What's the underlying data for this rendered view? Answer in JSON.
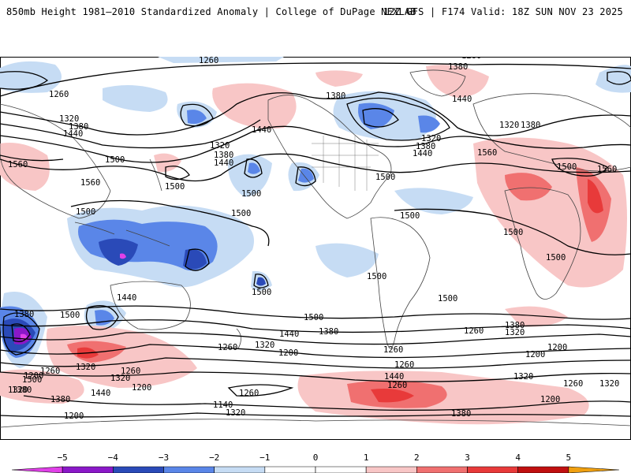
{
  "header": {
    "title": "850mb Height 1981–2010 Standardized Anomaly | College of DuPage NEXLAB",
    "run_info": "12Z GFS | F174 Valid: 18Z SUN NOV 23 2025"
  },
  "colors": {
    "anom_neg5": "#e040e8",
    "anom_neg4": "#8a18c8",
    "anom_neg3": "#2a4ab8",
    "anom_neg2": "#5a86e8",
    "anom_neg1": "#c6dcf4",
    "anom_pos1": "#f8c6c6",
    "anom_pos2": "#f07070",
    "anom_pos3": "#e83a3a",
    "anom_pos4": "#c01010",
    "anom_pos5": "#f0a010",
    "contour": "#000000",
    "coastline": "#444444"
  },
  "colorbar": {
    "ticks": [
      "−5",
      "−4",
      "−3",
      "−2",
      "−1",
      "0",
      "1",
      "2",
      "3",
      "4",
      "5"
    ],
    "segment_colors": [
      "#e040e8",
      "#8a18c8",
      "#2a4ab8",
      "#5a86e8",
      "#c6dcf4",
      "#ffffff",
      "#ffffff",
      "#f8c6c6",
      "#f07070",
      "#e83a3a",
      "#c01010",
      "#f0a010"
    ]
  },
  "map": {
    "contour_labels": [
      {
        "id": "l1",
        "text": "1260"
      },
      {
        "id": "l2",
        "text": "1260"
      },
      {
        "id": "l3",
        "text": "1380"
      },
      {
        "id": "l4",
        "text": "1260"
      },
      {
        "id": "l5",
        "text": "1380"
      },
      {
        "id": "l6",
        "text": "1440"
      },
      {
        "id": "l7",
        "text": "1320"
      },
      {
        "id": "l8",
        "text": "1380"
      },
      {
        "id": "l9",
        "text": "1440"
      },
      {
        "id": "l10",
        "text": "1320"
      },
      {
        "id": "l11",
        "text": "1380"
      },
      {
        "id": "l12",
        "text": "1440"
      },
      {
        "id": "l13",
        "text": "1440"
      },
      {
        "id": "l14",
        "text": "1320"
      },
      {
        "id": "l15",
        "text": "1380"
      },
      {
        "id": "l16",
        "text": "1440"
      },
      {
        "id": "l17",
        "text": "1320"
      },
      {
        "id": "l18",
        "text": "1380"
      },
      {
        "id": "l19",
        "text": "1560"
      },
      {
        "id": "l20",
        "text": "1500"
      },
      {
        "id": "l21",
        "text": "1560"
      },
      {
        "id": "l22",
        "text": "1500"
      },
      {
        "id": "l23",
        "text": "1500"
      },
      {
        "id": "l24",
        "text": "1560"
      },
      {
        "id": "l25",
        "text": "1500"
      },
      {
        "id": "l26",
        "text": "1560"
      },
      {
        "id": "l27",
        "text": "1500"
      },
      {
        "id": "l28",
        "text": "1500"
      },
      {
        "id": "l29",
        "text": "1500"
      },
      {
        "id": "l30",
        "text": "1500"
      },
      {
        "id": "l31",
        "text": "1500"
      },
      {
        "id": "l32",
        "text": "1440"
      },
      {
        "id": "l33",
        "text": "1500"
      },
      {
        "id": "l34",
        "text": "1500"
      },
      {
        "id": "l35",
        "text": "1500"
      },
      {
        "id": "l36",
        "text": "1500"
      },
      {
        "id": "l37",
        "text": "1500"
      },
      {
        "id": "l38",
        "text": "1380"
      },
      {
        "id": "l39",
        "text": "1440"
      },
      {
        "id": "l40",
        "text": "1380"
      },
      {
        "id": "l41",
        "text": "1320"
      },
      {
        "id": "l42",
        "text": "1260"
      },
      {
        "id": "l43",
        "text": "1200"
      },
      {
        "id": "l44",
        "text": "1380"
      },
      {
        "id": "l45",
        "text": "1320"
      },
      {
        "id": "l46",
        "text": "1260"
      },
      {
        "id": "l47",
        "text": "1200"
      },
      {
        "id": "l48",
        "text": "1200"
      },
      {
        "id": "l49",
        "text": "1260"
      },
      {
        "id": "l50",
        "text": "1320"
      },
      {
        "id": "l51",
        "text": "1320"
      },
      {
        "id": "l52",
        "text": "1200"
      },
      {
        "id": "l53",
        "text": "1260"
      },
      {
        "id": "l54",
        "text": "1380"
      },
      {
        "id": "l55",
        "text": "1440"
      },
      {
        "id": "l56",
        "text": "1380"
      },
      {
        "id": "l57",
        "text": "1320"
      },
      {
        "id": "l58",
        "text": "1260"
      },
      {
        "id": "l59",
        "text": "1200"
      },
      {
        "id": "l60",
        "text": "1320"
      },
      {
        "id": "l61",
        "text": "1380"
      },
      {
        "id": "l62",
        "text": "1260"
      },
      {
        "id": "l63",
        "text": "1440"
      },
      {
        "id": "l64",
        "text": "1260"
      },
      {
        "id": "l65",
        "text": "1200"
      },
      {
        "id": "l66",
        "text": "1140"
      },
      {
        "id": "l67",
        "text": "1260"
      },
      {
        "id": "l68",
        "text": "1320"
      },
      {
        "id": "l69",
        "text": "1200"
      },
      {
        "id": "l70",
        "text": "1260"
      },
      {
        "id": "l71",
        "text": "1320"
      },
      {
        "id": "l72",
        "text": "1500"
      },
      {
        "id": "l73",
        "text": "1500"
      }
    ]
  }
}
